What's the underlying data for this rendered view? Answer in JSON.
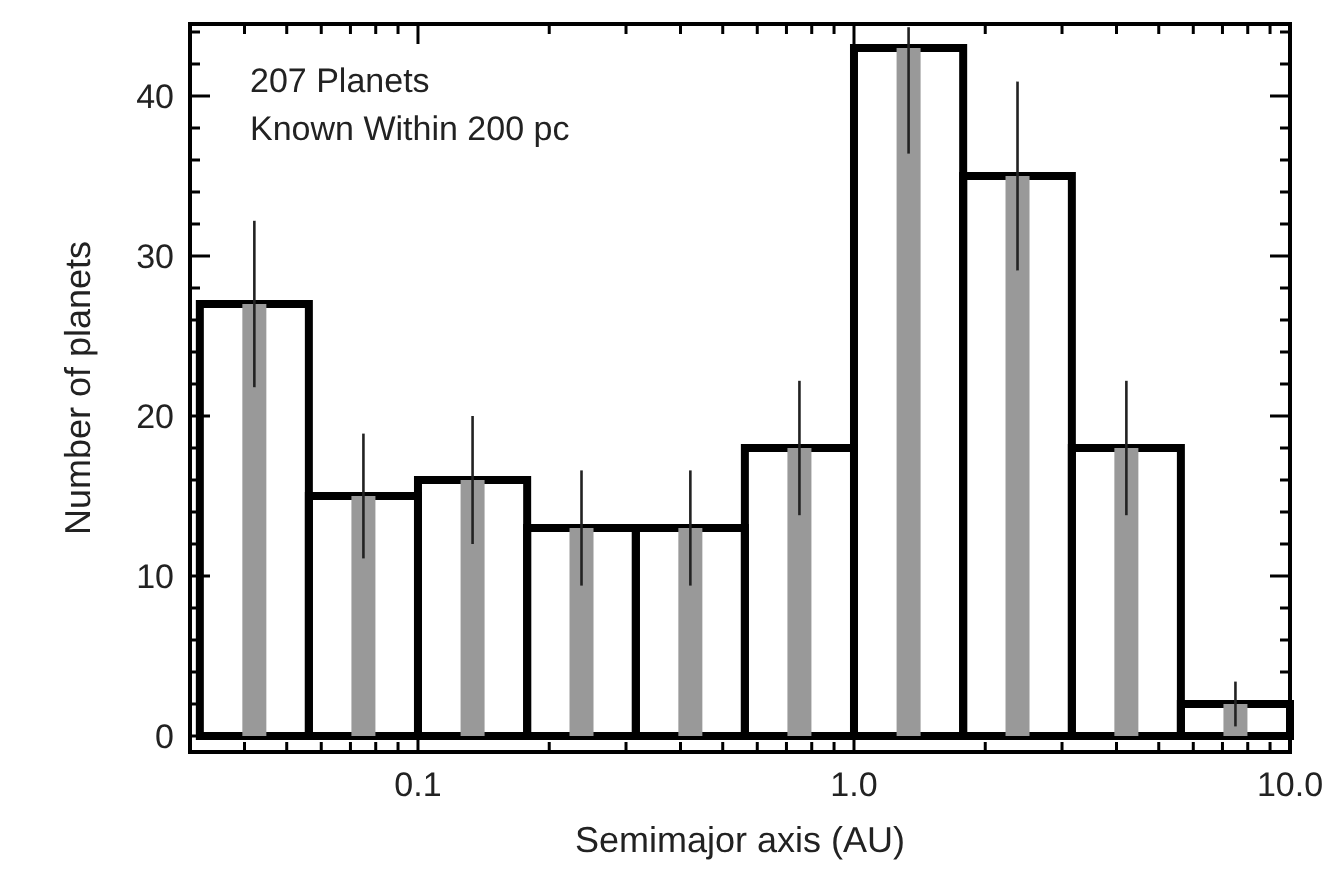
{
  "chart_data": {
    "type": "histogram",
    "xlabel": "Semimajor axis (AU)",
    "ylabel": "Number of planets",
    "annotations": [
      "207 Planets",
      "Known Within 200 pc"
    ],
    "bins": [
      0.0316,
      0.0562,
      0.1,
      0.178,
      0.316,
      0.562,
      1,
      1.78,
      3.16,
      5.62,
      10
    ],
    "series": [
      {
        "color": "#000000",
        "values": [
          27,
          15,
          16,
          13,
          13,
          18,
          43,
          35,
          18,
          2
        ]
      },
      {
        "color": "#999999",
        "values": [
          27,
          15,
          16,
          13,
          13,
          18,
          43,
          35,
          18,
          2
        ],
        "errors": [
          5.2,
          3.9,
          4,
          3.6,
          3.6,
          4.2,
          [
            36.4,
            44.3
          ],
          5.9,
          4.2,
          1.4
        ]
      }
    ],
    "log": "x",
    "xlim": [
      0.03,
      10
    ],
    "ylim": [
      -1,
      44.5
    ],
    "xticks": [
      {
        "value": 0.04,
        "label": null
      },
      {
        "value": 0.05,
        "label": null
      },
      {
        "value": 0.06,
        "label": null
      },
      {
        "value": 0.07,
        "label": null
      },
      {
        "value": 0.08,
        "label": null
      },
      {
        "value": 0.09,
        "label": null
      },
      0.1,
      {
        "value": 0.2,
        "label": null
      },
      {
        "value": 0.3,
        "label": null
      },
      {
        "value": 0.4,
        "label": null
      },
      {
        "value": 0.5,
        "label": null
      },
      {
        "value": 0.6,
        "label": null
      },
      {
        "value": 0.7,
        "label": null
      },
      {
        "value": 0.8,
        "label": null
      },
      {
        "value": 0.9,
        "label": null
      },
      {
        "value": 1,
        "label": "1.0"
      },
      {
        "value": 2,
        "label": null
      },
      {
        "value": 3,
        "label": null
      },
      {
        "value": 4,
        "label": null
      },
      {
        "value": 5,
        "label": null
      },
      {
        "value": 6,
        "label": null
      },
      {
        "value": 7,
        "label": null
      },
      {
        "value": 8,
        "label": null
      },
      {
        "value": 9,
        "label": null
      },
      {
        "value": 10,
        "label": "10.0"
      }
    ],
    "yticks": [
      0,
      {
        "value": 2,
        "label": null
      },
      {
        "value": 4,
        "label": null
      },
      {
        "value": 6,
        "label": null
      },
      {
        "value": 8,
        "label": null
      },
      10,
      {
        "value": 12,
        "label": null
      },
      {
        "value": 14,
        "label": null
      },
      {
        "value": 16,
        "label": null
      },
      {
        "value": 18,
        "label": null
      },
      20,
      {
        "value": 22,
        "label": null
      },
      {
        "value": 24,
        "label": null
      },
      {
        "value": 26,
        "label": null
      },
      {
        "value": 28,
        "label": null
      },
      30,
      {
        "value": 32,
        "label": null
      },
      {
        "value": 34,
        "label": null
      },
      {
        "value": 36,
        "label": null
      },
      {
        "value": 38,
        "label": null
      },
      40,
      {
        "value": 42,
        "label": null
      },
      {
        "value": 44,
        "label": null
      }
    ],
    "grid": false
  }
}
